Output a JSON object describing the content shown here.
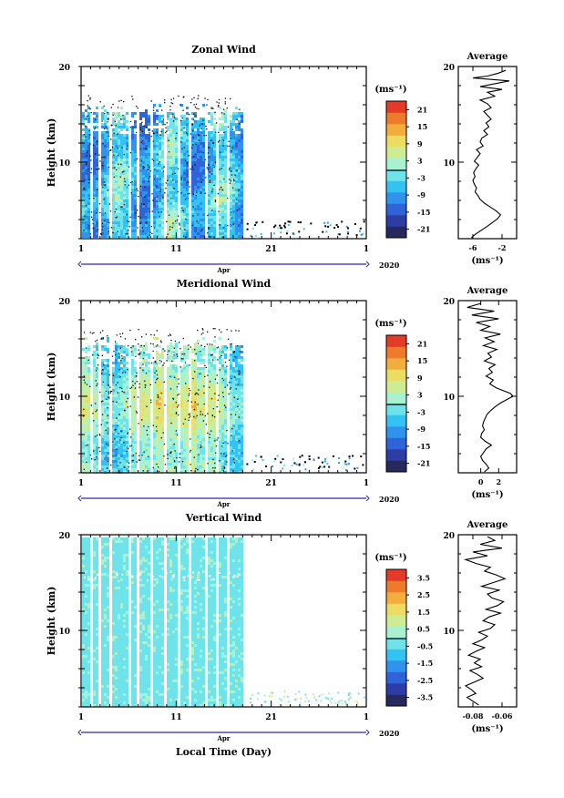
{
  "chart_data": [
    {
      "type": "heatmap",
      "title": "Zonal Wind",
      "ylabel": "Height (km)",
      "ylim": [
        2,
        20
      ],
      "yticks": [
        "20",
        "10"
      ],
      "xticks": [
        "1",
        "11",
        "21",
        "1"
      ],
      "month": "Apr",
      "year": "2020",
      "colorbar": {
        "unit": "(ms⁻¹)",
        "labels": [
          "21",
          "15",
          "9",
          "3",
          "-3",
          "-9",
          "-15",
          "-21"
        ],
        "range": [
          -24,
          24
        ]
      },
      "average": {
        "title": "Average",
        "xlabel": "(ms⁻¹)",
        "xticks": [
          "-6",
          "-2"
        ],
        "xlim": [
          -8,
          0
        ],
        "x": [
          -1.5,
          -2.5,
          -4,
          -6,
          -1,
          -3,
          -5,
          -2,
          -4,
          -3,
          -5,
          -4,
          -3.5,
          -4.5,
          -4,
          -3.5,
          -4.2,
          -3.8,
          -4.5,
          -4,
          -4.8,
          -5,
          -4.6,
          -5.5,
          -5,
          -5.4,
          -5.8,
          -5.2,
          -5.6,
          -5.9,
          -5.7,
          -6,
          -5.8,
          -5.5,
          -5.7,
          -5.3,
          -5,
          -4.4,
          -3.6,
          -2.8,
          -2.2,
          -2.6,
          -3.3,
          -4,
          -4.8,
          -5.6,
          -6.2
        ],
        "y": [
          19.6,
          19.3,
          19,
          18.8,
          18.5,
          18.2,
          17.9,
          17.6,
          17.3,
          16.9,
          16.5,
          16.1,
          15.7,
          15.3,
          14.9,
          14.5,
          14.1,
          13.7,
          13.3,
          12.9,
          12.5,
          12.1,
          11.7,
          11.3,
          10.9,
          10.5,
          10.1,
          9.7,
          9.3,
          8.9,
          8.5,
          8.1,
          7.7,
          7.3,
          6.9,
          6.5,
          6.1,
          5.7,
          5.3,
          4.9,
          4.5,
          4.1,
          3.7,
          3.3,
          2.9,
          2.5,
          2.1
        ]
      }
    },
    {
      "type": "heatmap",
      "title": "Meridional Wind",
      "ylabel": "Height (km)",
      "ylim": [
        2,
        20
      ],
      "yticks": [
        "20",
        "10"
      ],
      "xticks": [
        "1",
        "11",
        "21",
        "1"
      ],
      "month": "Apr",
      "year": "2020",
      "colorbar": {
        "unit": "(ms⁻¹)",
        "labels": [
          "21",
          "15",
          "9",
          "3",
          "-3",
          "-9",
          "-15",
          "-21"
        ],
        "range": [
          -24,
          24
        ]
      },
      "average": {
        "title": "Average",
        "xlabel": "(ms⁻¹)",
        "xticks": [
          "0",
          "2"
        ],
        "xlim": [
          -2.5,
          4
        ],
        "x": [
          0,
          -1.5,
          1.5,
          -1,
          2,
          -0.5,
          1,
          0,
          2.2,
          0.5,
          1.5,
          0.3,
          1.8,
          0.8,
          1.2,
          0.4,
          1.6,
          0.9,
          1.3,
          0.6,
          1.4,
          1.0,
          1.7,
          2.5,
          3.3,
          3.6,
          3.0,
          2.2,
          1.6,
          1.1,
          0.7,
          0.5,
          0.3,
          0.2,
          0.4,
          0.1,
          0,
          0.5,
          1.2,
          0.6,
          0.3,
          0,
          0.2,
          0.6,
          0.9,
          0.4
        ],
        "y": [
          19.7,
          19.3,
          18.9,
          18.5,
          18.1,
          17.7,
          17.3,
          16.9,
          16.5,
          16.1,
          15.7,
          15.3,
          14.9,
          14.5,
          14.1,
          13.7,
          13.3,
          12.9,
          12.5,
          12.1,
          11.7,
          11.3,
          10.9,
          10.6,
          10.3,
          10.0,
          9.7,
          9.3,
          8.9,
          8.5,
          8.1,
          7.7,
          7.3,
          6.9,
          6.5,
          6.1,
          5.7,
          5.3,
          4.9,
          4.5,
          4.1,
          3.7,
          3.3,
          2.9,
          2.5,
          2.1
        ]
      }
    },
    {
      "type": "heatmap",
      "title": "Vertical Wind",
      "ylabel": "Height (km)",
      "xlabel": "Local Time (Day)",
      "ylim": [
        2,
        20
      ],
      "yticks": [
        "20",
        "10"
      ],
      "xticks": [
        "1",
        "11",
        "21",
        "1"
      ],
      "month": "Apr",
      "year": "2020",
      "colorbar": {
        "unit": "(ms⁻¹)",
        "labels": [
          "3.5",
          "2.5",
          "1.5",
          "0.5",
          "-0.5",
          "-1.5",
          "-2.5",
          "-3.5"
        ],
        "range": [
          -4,
          4
        ]
      },
      "average": {
        "title": "Average",
        "xlabel": "(ms⁻¹)",
        "xticks": [
          "-0.08",
          "-0.06"
        ],
        "xlim": [
          -0.09,
          -0.05
        ],
        "x": [
          -0.07,
          -0.065,
          -0.075,
          -0.06,
          -0.08,
          -0.07,
          -0.085,
          -0.078,
          -0.068,
          -0.072,
          -0.064,
          -0.058,
          -0.066,
          -0.074,
          -0.062,
          -0.07,
          -0.067,
          -0.059,
          -0.063,
          -0.071,
          -0.061,
          -0.069,
          -0.073,
          -0.065,
          -0.068,
          -0.076,
          -0.07,
          -0.074,
          -0.08,
          -0.072,
          -0.078,
          -0.083,
          -0.075,
          -0.079,
          -0.074,
          -0.082,
          -0.077,
          -0.073,
          -0.079,
          -0.085,
          -0.081,
          -0.078,
          -0.084,
          -0.08,
          -0.076
        ],
        "y": [
          19.8,
          19.4,
          19.0,
          18.6,
          18.2,
          17.8,
          17.4,
          17.0,
          16.6,
          16.2,
          15.8,
          15.4,
          15.0,
          14.6,
          14.2,
          13.8,
          13.4,
          13.0,
          12.6,
          12.2,
          11.8,
          11.4,
          11.0,
          10.6,
          10.2,
          9.8,
          9.4,
          9.0,
          8.6,
          8.2,
          7.8,
          7.4,
          7.0,
          6.6,
          6.2,
          5.8,
          5.4,
          5.0,
          4.6,
          4.2,
          3.8,
          3.4,
          3.0,
          2.6,
          2.2
        ]
      }
    }
  ],
  "colors": {
    "colormap": [
      "#27285c",
      "#2c3ea6",
      "#2f63d8",
      "#2f92ec",
      "#33c2f2",
      "#6fe3ea",
      "#a8f2d2",
      "#cfec92",
      "#ecdd62",
      "#f3ad3c",
      "#ee7a2c",
      "#e33b27"
    ]
  }
}
